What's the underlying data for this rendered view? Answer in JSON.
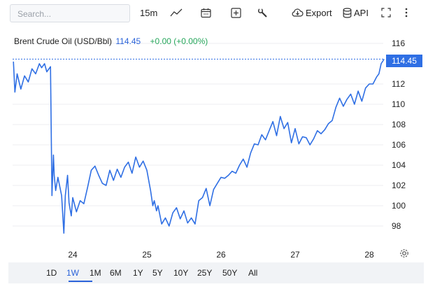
{
  "toolbar": {
    "search_placeholder": "Search...",
    "interval": "15m",
    "export_label": "Export",
    "api_label": "API"
  },
  "legend": {
    "name": "Brent Crude Oil (USD/Bbl)",
    "price": "114.45",
    "change": "+0.00 (+0.00%)"
  },
  "price_tag": "114.45",
  "ranges": [
    "1D",
    "1W",
    "1M",
    "6M",
    "1Y",
    "5Y",
    "10Y",
    "25Y",
    "50Y",
    "All"
  ],
  "active_range": "1W",
  "colors": {
    "line": "#2f6fe4",
    "up": "#26a65b",
    "grid": "#eceef1"
  },
  "chart_data": {
    "type": "line",
    "title": "Brent Crude Oil (USD/Bbl)",
    "xlabel": "",
    "ylabel": "",
    "x_ticks": [
      "24",
      "25",
      "26",
      "27",
      "28"
    ],
    "y_ticks": [
      98,
      100,
      102,
      104,
      106,
      108,
      110,
      112,
      114.45,
      116
    ],
    "ylim": [
      96.5,
      116.8
    ],
    "xlim": [
      23.2,
      28.25
    ],
    "current_value": 114.45,
    "grid": true,
    "x": [
      23.2,
      23.22,
      23.25,
      23.3,
      23.35,
      23.4,
      23.45,
      23.5,
      23.55,
      23.58,
      23.62,
      23.65,
      23.7,
      23.72,
      23.74,
      23.75,
      23.77,
      23.8,
      23.85,
      23.88,
      23.9,
      23.93,
      23.95,
      23.98,
      24.0,
      24.05,
      24.1,
      24.15,
      24.2,
      24.25,
      24.3,
      24.35,
      24.4,
      24.45,
      24.5,
      24.55,
      24.6,
      24.65,
      24.7,
      24.75,
      24.8,
      24.85,
      24.9,
      24.95,
      25.0,
      25.05,
      25.08,
      25.1,
      25.13,
      25.15,
      25.2,
      25.25,
      25.3,
      25.35,
      25.4,
      25.45,
      25.5,
      25.55,
      25.6,
      25.65,
      25.7,
      25.75,
      25.8,
      25.85,
      25.9,
      25.95,
      26.0,
      26.05,
      26.1,
      26.15,
      26.2,
      26.25,
      26.3,
      26.35,
      26.4,
      26.45,
      26.5,
      26.55,
      26.6,
      26.65,
      26.7,
      26.75,
      26.8,
      26.85,
      26.9,
      26.95,
      27.0,
      27.05,
      27.1,
      27.15,
      27.2,
      27.25,
      27.3,
      27.35,
      27.4,
      27.45,
      27.5,
      27.55,
      27.6,
      27.65,
      27.7,
      27.75,
      27.8,
      27.85,
      27.9,
      27.95,
      28.0,
      28.05,
      28.1,
      28.13,
      28.16,
      28.2
    ],
    "values": [
      114.2,
      111.2,
      113.0,
      111.5,
      112.8,
      112.2,
      113.5,
      113.0,
      114.0,
      113.6,
      114.0,
      113.2,
      113.7,
      101.0,
      105.0,
      103.0,
      101.5,
      102.8,
      101.0,
      97.3,
      101.0,
      103.0,
      100.3,
      99.0,
      100.8,
      99.4,
      100.5,
      100.2,
      101.8,
      103.5,
      103.9,
      103.0,
      102.2,
      102.0,
      103.5,
      102.5,
      103.6,
      102.8,
      103.8,
      104.3,
      103.2,
      104.8,
      103.8,
      104.4,
      103.5,
      101.5,
      100.0,
      100.5,
      99.5,
      100.0,
      98.2,
      98.8,
      98.0,
      99.3,
      99.8,
      98.7,
      99.5,
      98.3,
      98.8,
      98.2,
      100.5,
      100.8,
      101.7,
      100.0,
      101.6,
      102.2,
      102.8,
      102.7,
      103.0,
      103.4,
      103.2,
      104.0,
      104.6,
      103.8,
      105.2,
      106.1,
      106.0,
      107.0,
      106.5,
      107.4,
      108.3,
      106.9,
      108.8,
      107.6,
      108.2,
      106.2,
      107.6,
      106.1,
      106.8,
      106.7,
      106.0,
      106.6,
      107.4,
      107.1,
      107.5,
      108.1,
      108.4,
      109.7,
      110.6,
      109.8,
      110.5,
      111.0,
      110.0,
      111.3,
      110.3,
      111.6,
      112.0,
      112.0,
      112.7,
      113.0,
      114.0,
      114.45
    ]
  }
}
